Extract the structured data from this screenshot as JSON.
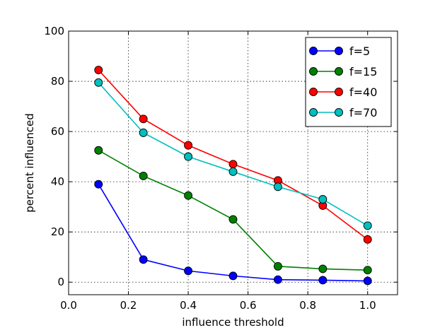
{
  "chart_data": {
    "type": "line",
    "title": "",
    "xlabel": "influence threshold",
    "ylabel": "percent influenced",
    "xlim": [
      0.0,
      1.1
    ],
    "ylim": [
      -5,
      100
    ],
    "xticks": [
      0.0,
      0.2,
      0.4,
      0.6,
      0.8,
      1.0
    ],
    "xtick_labels": [
      "0.0",
      "0.2",
      "0.4",
      "0.6",
      "0.8",
      "1.0"
    ],
    "yticks": [
      0,
      20,
      40,
      60,
      80,
      100
    ],
    "ytick_labels": [
      "0",
      "20",
      "40",
      "60",
      "80",
      "100"
    ],
    "grid": true,
    "legend_position": "top-right",
    "x": [
      0.1,
      0.25,
      0.4,
      0.55,
      0.7,
      0.85,
      1.0
    ],
    "series": [
      {
        "name": "f=5",
        "color": "#0000ff",
        "values": [
          39,
          9,
          4.5,
          2.5,
          1,
          0.8,
          0.5
        ]
      },
      {
        "name": "f=15",
        "color": "#008000",
        "values": [
          52.5,
          42.3,
          34.5,
          25,
          6.3,
          5.3,
          4.8
        ]
      },
      {
        "name": "f=40",
        "color": "#ff0000",
        "values": [
          84.5,
          65,
          54.5,
          47,
          40.5,
          30.5,
          17
        ]
      },
      {
        "name": "f=70",
        "color": "#00bfbf",
        "values": [
          79.5,
          59.5,
          50,
          44,
          38,
          33,
          22.5
        ]
      }
    ]
  }
}
